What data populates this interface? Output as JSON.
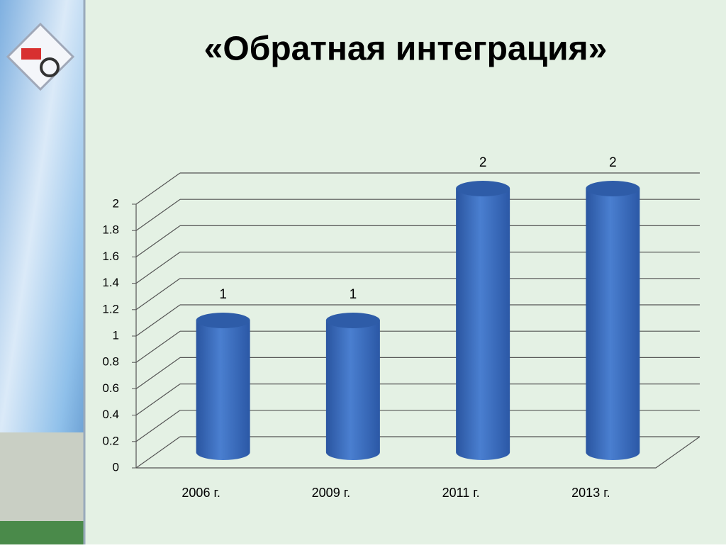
{
  "chart_data": {
    "type": "bar3d",
    "title": "«Обратная интеграция»",
    "categories": [
      "2006 г.",
      "2009 г.",
      "2011 г.",
      "2013 г."
    ],
    "values": [
      1,
      1,
      2,
      2
    ],
    "color": "#3f6fc0",
    "ylim": [
      0,
      2
    ],
    "yticks": [
      0,
      0.2,
      0.4,
      0.6,
      0.8,
      1,
      1.2,
      1.4,
      1.6,
      1.8,
      2
    ],
    "grid": true
  }
}
